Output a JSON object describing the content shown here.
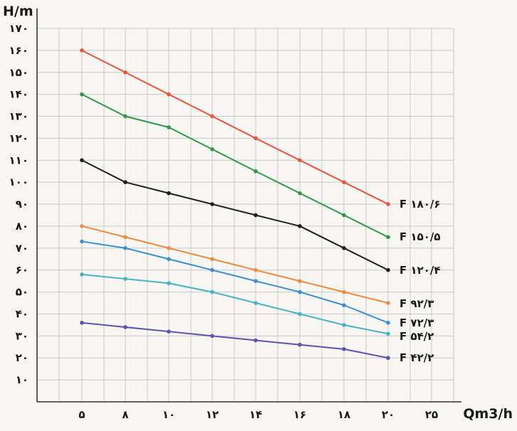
{
  "chart_data": {
    "type": "line",
    "ylabel": "H/m",
    "xlabel": "Qm3/h",
    "x_tick_labels": [
      "۵",
      "۸",
      "۱۰",
      "۱۲",
      "۱۴",
      "۱۶",
      "۱۸",
      "۲۰",
      "۲۵"
    ],
    "y_tick_labels": [
      "۱۰",
      "۲۰",
      "۳۰",
      "۴۰",
      "۵۰",
      "۶۰",
      "۷۰",
      "۸۰",
      "۹۰",
      "۱۰۰",
      "۱۱۰",
      "۱۲۰",
      "۱۳۰",
      "۱۴۰",
      "۱۵۰",
      "۱۶۰",
      "۱۷۰"
    ],
    "y_ticks": [
      10,
      20,
      30,
      40,
      50,
      60,
      70,
      80,
      90,
      100,
      110,
      120,
      130,
      140,
      150,
      160,
      170
    ],
    "ylim": [
      0,
      170
    ],
    "grid": true,
    "categories": [
      "۵",
      "۸",
      "۱۰",
      "۱۲",
      "۱۴",
      "۱۶",
      "۱۸",
      "۲۰"
    ],
    "series": [
      {
        "name": "F ۱۸۰/۶",
        "color": "#e8553a",
        "values": [
          160,
          150,
          140,
          130,
          120,
          110,
          100,
          90
        ]
      },
      {
        "name": "F ۱۵۰/۵",
        "color": "#2e9a48",
        "values": [
          140,
          130,
          125,
          115,
          105,
          95,
          85,
          75
        ]
      },
      {
        "name": "F ۱۲۰/۴",
        "color": "#1f1f1f",
        "values": [
          110,
          100,
          95,
          90,
          85,
          80,
          70,
          60
        ]
      },
      {
        "name": "F ۹۲/۳",
        "color": "#f08a3e",
        "values": [
          80,
          75,
          70,
          65,
          60,
          55,
          50,
          45
        ]
      },
      {
        "name": "F ۷۲/۳",
        "color": "#3b8fd4",
        "values": [
          73,
          70,
          65,
          60,
          55,
          50,
          44,
          36
        ]
      },
      {
        "name": "F ۵۴/۲",
        "color": "#46b2c6",
        "values": [
          58,
          56,
          54,
          50,
          45,
          40,
          35,
          31
        ]
      },
      {
        "name": "F ۴۲/۲",
        "color": "#5a55b0",
        "values": [
          36,
          34,
          32,
          30,
          28,
          26,
          24,
          20
        ]
      }
    ]
  }
}
